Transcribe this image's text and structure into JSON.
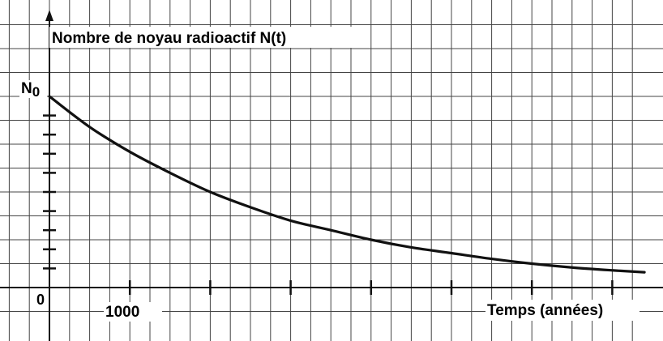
{
  "chart_data": {
    "type": "line",
    "title": "",
    "ylabel": "Nombre de noyau radioactif N(t)",
    "xlabel": "Temps (années)",
    "origin_label": "0",
    "y_tick_label": "N",
    "y_tick_label_sub": "0",
    "x_tick_labels": [
      "1000"
    ],
    "x_ticks": [
      0,
      1000,
      2000,
      3000,
      4000,
      5000,
      6000,
      7000
    ],
    "y_ticks": [
      0.1,
      0.2,
      0.3,
      0.4,
      0.5,
      0.6,
      0.7,
      0.8,
      0.9
    ],
    "xlim": [
      -600,
      7400
    ],
    "ylim": [
      -0.2,
      1.4
    ],
    "grid": true,
    "series": [
      {
        "name": "",
        "x": [
          0,
          500,
          1000,
          1500,
          2000,
          2500,
          3000,
          3500,
          4000,
          4500,
          5000,
          5500,
          6000,
          6500,
          7000,
          7400
        ],
        "y": [
          1.0,
          0.84,
          0.71,
          0.6,
          0.5,
          0.42,
          0.35,
          0.3,
          0.25,
          0.21,
          0.18,
          0.15,
          0.125,
          0.105,
          0.09,
          0.08
        ]
      }
    ],
    "colors": {
      "line": "#111111",
      "grid": "#444444"
    }
  }
}
